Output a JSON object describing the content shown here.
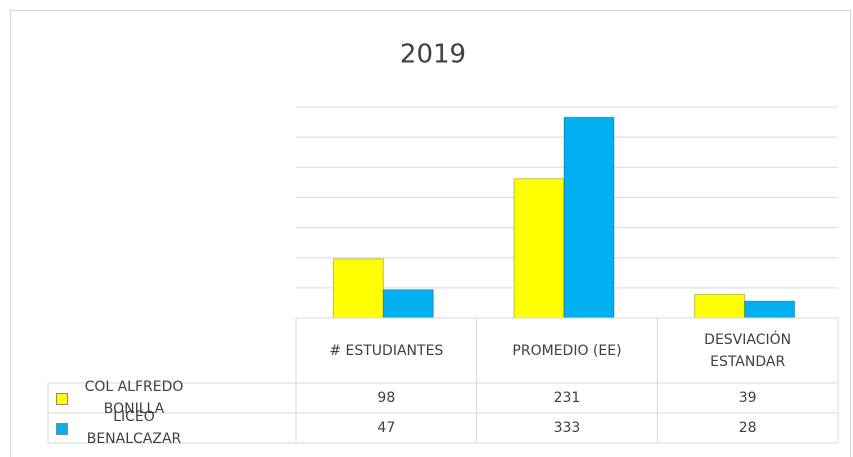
{
  "chart_data": {
    "type": "bar",
    "title": "2019",
    "categories": [
      "# ESTUDIANTES",
      "PROMEDIO (EE)",
      "DESVIACIÓN ESTANDAR"
    ],
    "series": [
      {
        "name": "COL ALFREDO BONILLA",
        "color": "#ffff00",
        "values": [
          98,
          231,
          39
        ]
      },
      {
        "name": "LICEO BENALCAZAR",
        "color": "#00b0f0",
        "values": [
          47,
          333,
          28
        ]
      }
    ],
    "ylim": [
      0,
      350
    ],
    "yticks": [
      0,
      50,
      100,
      150,
      200,
      250,
      300,
      350
    ],
    "grid": true
  }
}
